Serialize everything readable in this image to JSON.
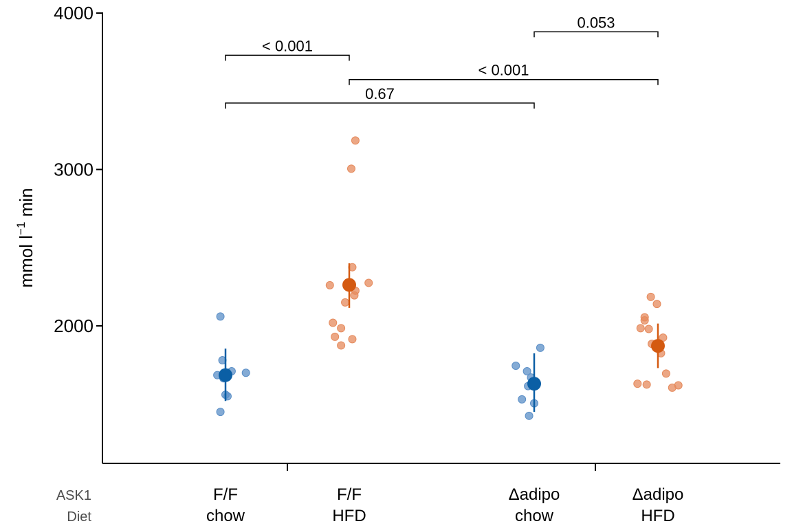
{
  "colors": {
    "chow": "#0b5fa5",
    "hfd": "#d45a11",
    "chow_point": "#5b8fc7",
    "hfd_point": "#e58a5c",
    "axis": "#000000"
  },
  "chart_data": {
    "type": "scatter",
    "ylabel": "mmol l",
    "ylabel_sup": "−1",
    "ylabel_tail": " min",
    "ylim": [
      1130,
      4000
    ],
    "yticks": [
      "2000",
      "3000",
      "4000"
    ],
    "yticks_values": [
      2000,
      3000,
      4000
    ],
    "row_labels": [
      "ASK1",
      "Diet"
    ],
    "groups": [
      {
        "ask1": "F/F",
        "diet": "chow",
        "color": "chow",
        "mean": 1685,
        "err_low": 1520,
        "err_high": 1855,
        "points": [
          {
            "dx": -0.05,
            "y": 2060
          },
          {
            "dx": -0.03,
            "y": 1780
          },
          {
            "dx": 0.06,
            "y": 1710
          },
          {
            "dx": -0.08,
            "y": 1685
          },
          {
            "dx": 0.2,
            "y": 1700
          },
          {
            "dx": -0.02,
            "y": 1665
          },
          {
            "dx": 0.0,
            "y": 1560
          },
          {
            "dx": 0.02,
            "y": 1550
          },
          {
            "dx": -0.05,
            "y": 1450
          }
        ]
      },
      {
        "ask1": "F/F",
        "diet": "HFD",
        "color": "hfd",
        "mean": 2262,
        "err_low": 2115,
        "err_high": 2400,
        "points": [
          {
            "dx": 0.06,
            "y": 3185
          },
          {
            "dx": 0.02,
            "y": 3005
          },
          {
            "dx": 0.03,
            "y": 2375
          },
          {
            "dx": -0.19,
            "y": 2260
          },
          {
            "dx": 0.19,
            "y": 2275
          },
          {
            "dx": 0.06,
            "y": 2225
          },
          {
            "dx": 0.05,
            "y": 2195
          },
          {
            "dx": -0.04,
            "y": 2150
          },
          {
            "dx": -0.16,
            "y": 2020
          },
          {
            "dx": -0.08,
            "y": 1985
          },
          {
            "dx": -0.14,
            "y": 1930
          },
          {
            "dx": 0.03,
            "y": 1915
          },
          {
            "dx": -0.08,
            "y": 1875
          }
        ]
      },
      {
        "ask1": "Δadipo",
        "diet": "chow",
        "color": "chow",
        "mean": 1630,
        "err_low": 1450,
        "err_high": 1825,
        "points": [
          {
            "dx": 0.06,
            "y": 1860
          },
          {
            "dx": -0.18,
            "y": 1745
          },
          {
            "dx": -0.07,
            "y": 1710
          },
          {
            "dx": -0.03,
            "y": 1670
          },
          {
            "dx": -0.06,
            "y": 1615
          },
          {
            "dx": -0.12,
            "y": 1530
          },
          {
            "dx": 0.0,
            "y": 1505
          },
          {
            "dx": -0.05,
            "y": 1425
          }
        ]
      },
      {
        "ask1": "Δadipo",
        "diet": "HFD",
        "color": "hfd",
        "mean": 1872,
        "err_low": 1730,
        "err_high": 2015,
        "points": [
          {
            "dx": -0.07,
            "y": 2185
          },
          {
            "dx": -0.01,
            "y": 2140
          },
          {
            "dx": -0.13,
            "y": 2055
          },
          {
            "dx": -0.13,
            "y": 2035
          },
          {
            "dx": -0.17,
            "y": 1985
          },
          {
            "dx": -0.09,
            "y": 1980
          },
          {
            "dx": 0.05,
            "y": 1925
          },
          {
            "dx": -0.06,
            "y": 1885
          },
          {
            "dx": 0.03,
            "y": 1825
          },
          {
            "dx": 0.08,
            "y": 1695
          },
          {
            "dx": -0.2,
            "y": 1630
          },
          {
            "dx": -0.11,
            "y": 1625
          },
          {
            "dx": 0.2,
            "y": 1620
          },
          {
            "dx": 0.14,
            "y": 1605
          }
        ]
      }
    ],
    "comparisons": [
      {
        "from": 0,
        "to": 1,
        "y": 3730,
        "label": "< 0.001"
      },
      {
        "from": 2,
        "to": 3,
        "y": 3880,
        "label": "0.053"
      },
      {
        "from": 1,
        "to": 3,
        "y": 3575,
        "label": "< 0.001"
      },
      {
        "from": 0,
        "to": 2,
        "y": 3425,
        "label": "0.67"
      }
    ]
  }
}
